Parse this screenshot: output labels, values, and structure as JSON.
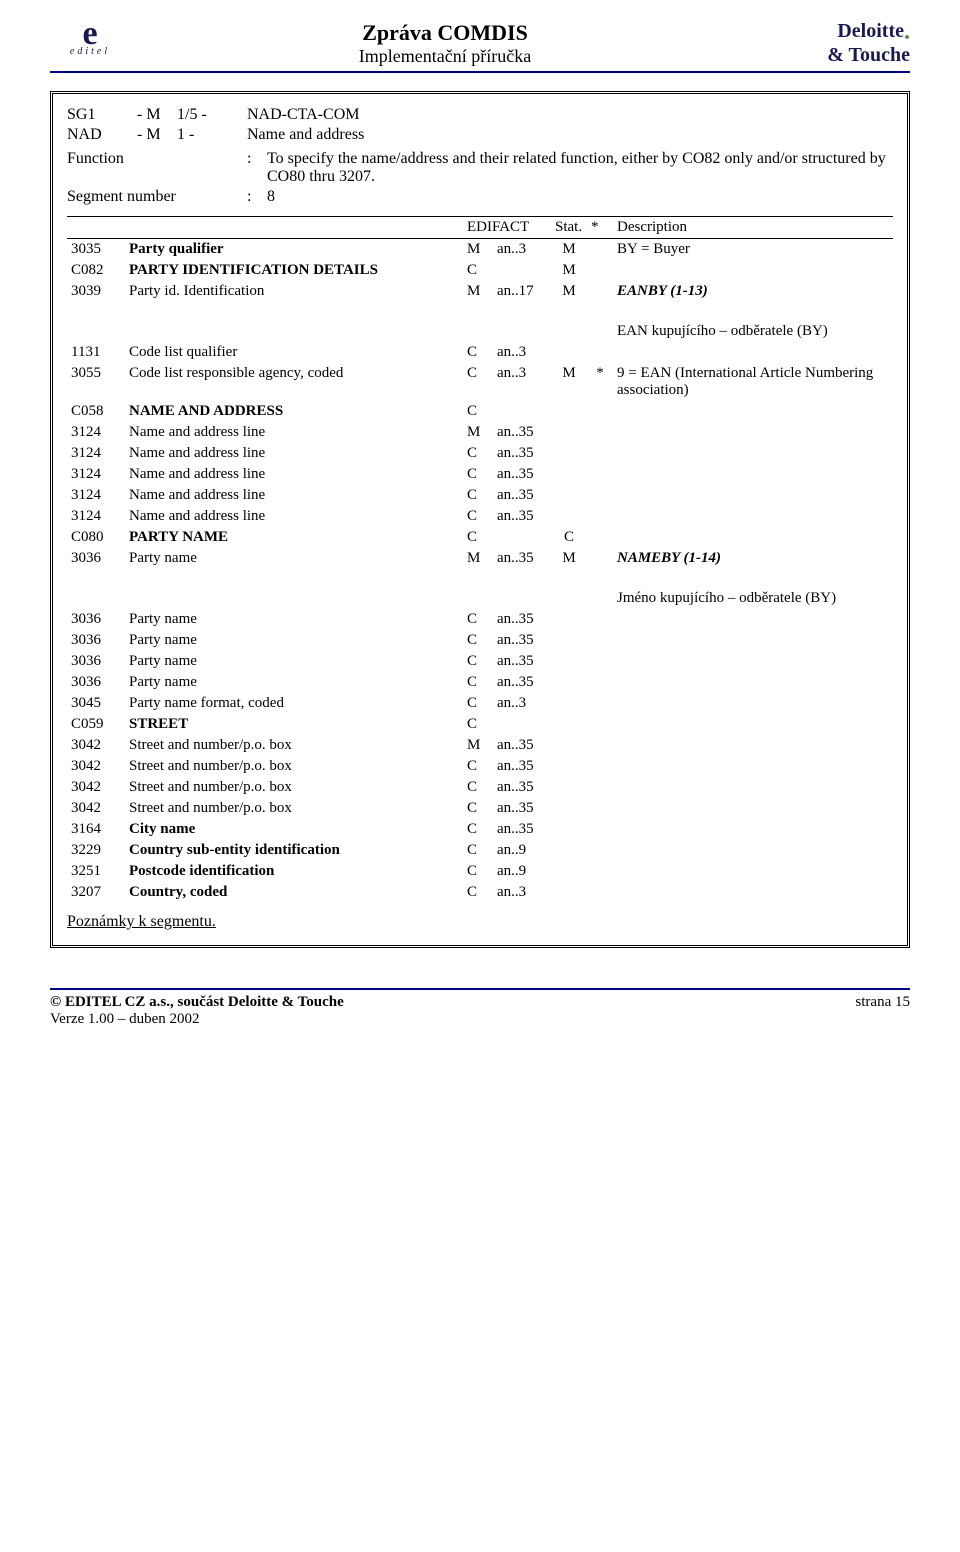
{
  "header": {
    "logo_e": "e",
    "logo_e_sub": "editel",
    "title1": "Zpráva COMDIS",
    "title2": "Implementační příručka",
    "right_logo1": "Deloitte",
    "right_logo2": "& Touche"
  },
  "seg": {
    "sg1_code": "SG1",
    "sg1_sep": "- M",
    "sg1_occ": "1/5 -",
    "sg1_name": "NAD-CTA-COM",
    "nad_code": "NAD",
    "nad_sep": "- M",
    "nad_occ": "1 -",
    "nad_name": "Name and address",
    "func_label": "Function",
    "func_colon": ":",
    "func_text": "To specify the name/address and their related function, either by CO82 only and/or structured by CO80 thru 3207.",
    "segnum_label": "Segment number",
    "segnum_colon": ":",
    "segnum_val": "8"
  },
  "thead": {
    "edifact": "EDIFACT",
    "stat": "Stat.",
    "star": "*",
    "desc": "Description"
  },
  "rows": [
    {
      "code": "3035",
      "name": "Party qualifier",
      "name_bold": 1,
      "m": "M",
      "fmt": "an..3",
      "stat": "M",
      "desc": "BY = Buyer",
      "indent": 0
    },
    {
      "code": "C082",
      "name": "PARTY IDENTIFICATION DETAILS",
      "name_bold": 1,
      "m": "C",
      "fmt": "",
      "stat": "M",
      "desc": "",
      "indent": 0
    },
    {
      "code": "3039",
      "name": "Party id. Identification",
      "m": "M",
      "fmt": "an..17",
      "stat": "M",
      "desc": "EANBY (1-13)",
      "desc_bi": 1,
      "indent": 1
    },
    {
      "code": "",
      "name": "",
      "m": "",
      "fmt": "",
      "stat": "",
      "desc": "EAN kupujícího – odběratele (BY)",
      "indent": 1,
      "spacer": 1
    },
    {
      "code": "1131",
      "name": "Code list qualifier",
      "m": "C",
      "fmt": "an..3",
      "stat": "",
      "desc": "",
      "indent": 1
    },
    {
      "code": "3055",
      "name": "Code list responsible agency, coded",
      "m": "C",
      "fmt": "an..3",
      "stat": "M",
      "star": "*",
      "desc": "9 = EAN (International Article Numbering association)",
      "indent": 1
    },
    {
      "code": "C058",
      "name": "NAME AND ADDRESS",
      "name_bold": 1,
      "m": "C",
      "fmt": "",
      "stat": "",
      "desc": "",
      "indent": 0
    },
    {
      "code": "3124",
      "name": "Name and address line",
      "m": "M",
      "fmt": "an..35",
      "stat": "",
      "desc": "",
      "indent": 1
    },
    {
      "code": "3124",
      "name": "Name and address line",
      "m": "C",
      "fmt": "an..35",
      "stat": "",
      "desc": "",
      "indent": 1
    },
    {
      "code": "3124",
      "name": "Name and address line",
      "m": "C",
      "fmt": "an..35",
      "stat": "",
      "desc": "",
      "indent": 1
    },
    {
      "code": "3124",
      "name": "Name and address line",
      "m": "C",
      "fmt": "an..35",
      "stat": "",
      "desc": "",
      "indent": 1
    },
    {
      "code": "3124",
      "name": "Name and address line",
      "m": "C",
      "fmt": "an..35",
      "stat": "",
      "desc": "",
      "indent": 1
    },
    {
      "code": "C080",
      "name": "PARTY NAME",
      "name_bold": 1,
      "m": "C",
      "fmt": "",
      "stat": "C",
      "desc": "",
      "indent": 0
    },
    {
      "code": "3036",
      "name": "Party name",
      "m": "M",
      "fmt": "an..35",
      "stat": "M",
      "desc": "NAMEBY (1-14)",
      "desc_bi": 1,
      "indent": 1
    },
    {
      "code": "",
      "name": "",
      "m": "",
      "fmt": "",
      "stat": "",
      "desc": "Jméno kupujícího – odběratele (BY)",
      "indent": 1,
      "spacer": 1
    },
    {
      "code": "3036",
      "name": "Party name",
      "m": "C",
      "fmt": "an..35",
      "stat": "",
      "desc": "",
      "indent": 1
    },
    {
      "code": "3036",
      "name": "Party name",
      "m": "C",
      "fmt": "an..35",
      "stat": "",
      "desc": "",
      "indent": 1
    },
    {
      "code": "3036",
      "name": "Party name",
      "m": "C",
      "fmt": "an..35",
      "stat": "",
      "desc": "",
      "indent": 1
    },
    {
      "code": "3036",
      "name": "Party name",
      "m": "C",
      "fmt": "an..35",
      "stat": "",
      "desc": "",
      "indent": 1
    },
    {
      "code": "3045",
      "name": "Party name format, coded",
      "m": "C",
      "fmt": "an..3",
      "stat": "",
      "desc": "",
      "indent": 1
    },
    {
      "code": "C059",
      "name": "STREET",
      "name_bold": 1,
      "m": "C",
      "fmt": "",
      "stat": "",
      "desc": "",
      "indent": 0
    },
    {
      "code": "3042",
      "name": "Street and number/p.o. box",
      "m": "M",
      "fmt": "an..35",
      "stat": "",
      "desc": "",
      "indent": 1
    },
    {
      "code": "3042",
      "name": "Street and number/p.o. box",
      "m": "C",
      "fmt": "an..35",
      "stat": "",
      "desc": "",
      "indent": 1
    },
    {
      "code": "3042",
      "name": "Street and number/p.o. box",
      "m": "C",
      "fmt": "an..35",
      "stat": "",
      "desc": "",
      "indent": 1
    },
    {
      "code": "3042",
      "name": "Street and number/p.o. box",
      "m": "C",
      "fmt": "an..35",
      "stat": "",
      "desc": "",
      "indent": 1
    },
    {
      "code": "3164",
      "name": "City name",
      "name_bold": 1,
      "m": "C",
      "fmt": "an..35",
      "stat": "",
      "desc": "",
      "indent": 0
    },
    {
      "code": "3229",
      "name": "Country sub-entity identification",
      "name_bold": 1,
      "m": "C",
      "fmt": "an..9",
      "stat": "",
      "desc": "",
      "indent": 0
    },
    {
      "code": "3251",
      "name": "Postcode identification",
      "name_bold": 1,
      "m": "C",
      "fmt": "an..9",
      "stat": "",
      "desc": "",
      "indent": 0
    },
    {
      "code": "3207",
      "name": "Country, coded",
      "name_bold": 1,
      "m": "C",
      "fmt": "an..3",
      "stat": "",
      "desc": "",
      "indent": 0
    }
  ],
  "footnote": "Poznámky k segmentu.",
  "footer": {
    "left1": "© EDITEL CZ a.s., součást Deloitte & Touche",
    "left2": "Verze 1.00 – duben 2002",
    "right": "strana 15"
  }
}
